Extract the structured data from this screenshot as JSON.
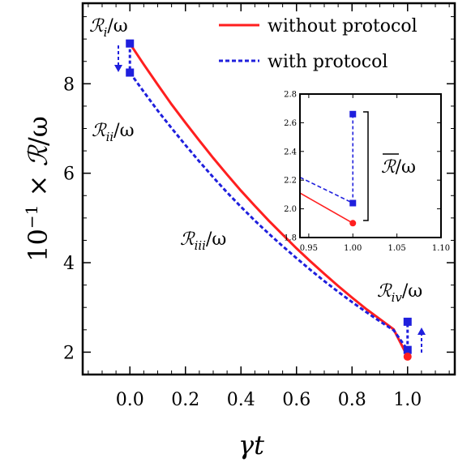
{
  "chart_data": [
    {
      "type": "line",
      "xlabel": "γt",
      "ylabel": "10⁻¹ × ℛ/ω",
      "xlim": [
        -0.17,
        1.17
      ],
      "ylim": [
        1.5,
        9.8
      ],
      "xticks": [
        "0.0",
        "0.2",
        "0.4",
        "0.6",
        "0.8",
        "1.0"
      ],
      "xtick_values": [
        0.0,
        0.2,
        0.4,
        0.6,
        0.8,
        1.0
      ],
      "yticks": [
        "2",
        "4",
        "6",
        "8"
      ],
      "ytick_values": [
        2,
        4,
        6,
        8
      ],
      "legend": {
        "placement": "top-right"
      },
      "grid": false,
      "series": [
        {
          "name": "without protocol",
          "style": "solid",
          "color": "#ff1f1f",
          "x": [
            0.0,
            0.05,
            0.1,
            0.15,
            0.2,
            0.25,
            0.3,
            0.35,
            0.4,
            0.45,
            0.5,
            0.55,
            0.6,
            0.65,
            0.7,
            0.75,
            0.8,
            0.85,
            0.9,
            0.95,
            1.0
          ],
          "y": [
            8.9,
            8.43,
            7.98,
            7.54,
            7.13,
            6.73,
            6.34,
            5.97,
            5.61,
            5.27,
            4.94,
            4.63,
            4.32,
            4.03,
            3.75,
            3.48,
            3.22,
            2.97,
            2.74,
            2.51,
            1.9
          ]
        },
        {
          "name": "with protocol",
          "style": "dashed",
          "color": "#1f1fdd",
          "x": [
            0.0,
            0.05,
            0.1,
            0.15,
            0.2,
            0.25,
            0.3,
            0.35,
            0.4,
            0.45,
            0.5,
            0.55,
            0.6,
            0.65,
            0.7,
            0.75,
            0.8,
            0.85,
            0.9,
            0.95,
            1.0
          ],
          "y": [
            8.25,
            7.82,
            7.4,
            7.01,
            6.63,
            6.26,
            5.91,
            5.57,
            5.25,
            4.94,
            4.65,
            4.37,
            4.1,
            3.84,
            3.59,
            3.35,
            3.12,
            2.9,
            2.69,
            2.49,
            2.05
          ]
        }
      ],
      "markers": [
        {
          "series": "with protocol",
          "shape": "square",
          "x": 0.0,
          "y": 8.9
        },
        {
          "series": "with protocol",
          "shape": "square",
          "x": 0.0,
          "y": 8.25
        },
        {
          "series": "with protocol",
          "shape": "square",
          "x": 1.0,
          "y": 2.05
        },
        {
          "series": "with protocol",
          "shape": "square",
          "x": 1.0,
          "y": 2.68
        },
        {
          "series": "without protocol",
          "shape": "circle",
          "x": 1.0,
          "y": 1.9
        }
      ],
      "annotations": [
        {
          "text": "ℛi/ω",
          "near": [
            0.0,
            8.9
          ]
        },
        {
          "text": "ℛii/ω",
          "near": [
            0.0,
            8.25
          ]
        },
        {
          "text": "ℛiii/ω",
          "near": [
            0.45,
            4.7
          ]
        },
        {
          "text": "ℛiv/ω",
          "near": [
            1.0,
            2.68
          ]
        }
      ]
    },
    {
      "type": "line",
      "role": "inset",
      "xlim": [
        0.94,
        1.1
      ],
      "ylim": [
        1.8,
        2.8
      ],
      "xticks": [
        "0.95",
        "1.00",
        "1.05",
        "1.10"
      ],
      "xtick_values": [
        0.95,
        1.0,
        1.05,
        1.1
      ],
      "yticks": [
        "1.8",
        "2.0",
        "2.2",
        "2.4",
        "2.6",
        "2.8"
      ],
      "ytick_values": [
        1.8,
        2.0,
        2.2,
        2.4,
        2.6,
        2.8
      ],
      "grid": false,
      "series": [
        {
          "name": "without protocol",
          "style": "solid",
          "color": "#ff1f1f",
          "x": [
            0.94,
            1.0
          ],
          "y": [
            2.11,
            1.9
          ]
        },
        {
          "name": "with protocol",
          "style": "dashed",
          "color": "#1f1fdd",
          "x": [
            0.94,
            1.0
          ],
          "y": [
            2.22,
            2.04
          ]
        }
      ],
      "markers": [
        {
          "series": "with protocol",
          "shape": "square",
          "x": 1.0,
          "y": 2.04
        },
        {
          "series": "with protocol",
          "shape": "square",
          "x": 1.0,
          "y": 2.66
        },
        {
          "series": "without protocol",
          "shape": "circle",
          "x": 1.0,
          "y": 1.9
        }
      ],
      "annotations": [
        {
          "text": "ℛ/ω (overlined)",
          "label_text": "ℛ/ω"
        }
      ]
    }
  ],
  "labels": {
    "ylabel_prefix": "10",
    "ylabel_exp": "−1",
    "ylabel_times": " × ",
    "ylabel_R": "ℛ",
    "ylabel_slash_omega": "/ω",
    "xlabel_gamma": "γ",
    "xlabel_t": "t",
    "legend_without": "without protocol",
    "legend_with": "with protocol",
    "R_script": "ℛ",
    "slash_omega": "/ω",
    "sub_i": "i",
    "sub_ii": "ii",
    "sub_iii": "iii",
    "sub_iv": "iv",
    "inset_R": "ℛ"
  },
  "colors": {
    "red": "#ff1f1f",
    "blue": "#1f1fdd",
    "axis": "#000000"
  }
}
